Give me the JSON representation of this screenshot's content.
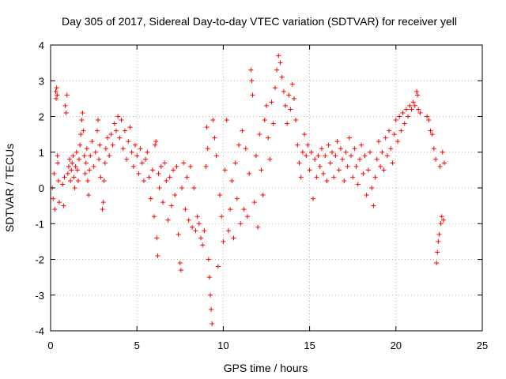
{
  "chart_data": {
    "type": "scatter",
    "title": "Day 305 of 2017, Sidereal Day-to-day VTEC variation (SDTVAR) for receiver yell",
    "xlabel": "GPS time / hours",
    "ylabel": "SDTVAR / TECUs",
    "xlim": [
      0,
      25
    ],
    "ylim": [
      -4,
      4
    ],
    "xticks": [
      0,
      5,
      10,
      15,
      20,
      25
    ],
    "yticks": [
      -4,
      -3,
      -2,
      -1,
      0,
      1,
      2,
      3,
      4
    ],
    "xtick_labels": [
      "0",
      "5",
      "10",
      "15",
      "20",
      "25"
    ],
    "ytick_labels": [
      "-4",
      "-3",
      "-2",
      "-1",
      "0",
      "1",
      "2",
      "3",
      "4"
    ],
    "grid": true,
    "marker": "+",
    "marker_color": "#ff0000",
    "series": [
      {
        "name": "SDTVAR",
        "points": [
          [
            0.1,
            0.0
          ],
          [
            0.15,
            -0.3
          ],
          [
            0.2,
            0.4
          ],
          [
            0.25,
            -0.6
          ],
          [
            0.3,
            2.7
          ],
          [
            0.32,
            2.5
          ],
          [
            0.35,
            2.8
          ],
          [
            0.38,
            2.6
          ],
          [
            0.4,
            0.9
          ],
          [
            0.42,
            0.7
          ],
          [
            0.45,
            0.2
          ],
          [
            0.5,
            -0.4
          ],
          [
            0.7,
            0.1
          ],
          [
            0.75,
            -0.5
          ],
          [
            0.8,
            0.3
          ],
          [
            0.85,
            2.3
          ],
          [
            0.9,
            2.1
          ],
          [
            0.95,
            2.6
          ],
          [
            1.0,
            0.4
          ],
          [
            1.05,
            0.6
          ],
          [
            1.1,
            0.8
          ],
          [
            1.15,
            0.2
          ],
          [
            1.2,
            0.5
          ],
          [
            1.25,
            0.7
          ],
          [
            1.3,
            0.9
          ],
          [
            1.35,
            0.3
          ],
          [
            1.4,
            0.0
          ],
          [
            1.45,
            0.6
          ],
          [
            1.5,
            1.0
          ],
          [
            1.55,
            0.5
          ],
          [
            1.6,
            0.2
          ],
          [
            1.65,
            0.8
          ],
          [
            1.7,
            1.2
          ],
          [
            1.75,
            1.5
          ],
          [
            1.8,
            1.9
          ],
          [
            1.85,
            2.1
          ],
          [
            1.9,
            1.6
          ],
          [
            1.95,
            0.9
          ],
          [
            2.0,
            0.4
          ],
          [
            2.05,
            0.7
          ],
          [
            2.1,
            1.1
          ],
          [
            2.15,
            0.2
          ],
          [
            2.2,
            -0.2
          ],
          [
            2.25,
            0.5
          ],
          [
            2.3,
            0.9
          ],
          [
            2.4,
            1.3
          ],
          [
            2.5,
            0.6
          ],
          [
            2.6,
            1.0
          ],
          [
            2.7,
            1.6
          ],
          [
            2.75,
            1.9
          ],
          [
            2.8,
            0.8
          ],
          [
            2.85,
            1.2
          ],
          [
            2.9,
            0.3
          ],
          [
            3.0,
            -0.6
          ],
          [
            3.05,
            -0.4
          ],
          [
            3.1,
            0.2
          ],
          [
            3.15,
            0.7
          ],
          [
            3.2,
            1.1
          ],
          [
            3.3,
            1.4
          ],
          [
            3.4,
            0.9
          ],
          [
            3.5,
            1.5
          ],
          [
            3.6,
            1.2
          ],
          [
            3.7,
            1.8
          ],
          [
            3.8,
            1.6
          ],
          [
            3.9,
            2.0
          ],
          [
            4.0,
            1.4
          ],
          [
            4.1,
            1.9
          ],
          [
            4.2,
            1.1
          ],
          [
            4.3,
            1.6
          ],
          [
            4.4,
            0.8
          ],
          [
            4.5,
            1.3
          ],
          [
            4.6,
            1.7
          ],
          [
            4.7,
            1.0
          ],
          [
            4.8,
            0.6
          ],
          [
            4.9,
            1.2
          ],
          [
            5.0,
            0.9
          ],
          [
            5.1,
            0.4
          ],
          [
            5.2,
            1.1
          ],
          [
            5.3,
            0.7
          ],
          [
            5.4,
            0.2
          ],
          [
            5.5,
            0.8
          ],
          [
            5.6,
            1.0
          ],
          [
            5.7,
            0.3
          ],
          [
            5.8,
            -0.3
          ],
          [
            5.9,
            0.5
          ],
          [
            6.0,
            -0.8
          ],
          [
            6.05,
            1.2
          ],
          [
            6.1,
            1.3
          ],
          [
            6.15,
            -1.4
          ],
          [
            6.2,
            -1.9
          ],
          [
            6.25,
            0.4
          ],
          [
            6.3,
            0.0
          ],
          [
            6.4,
            0.6
          ],
          [
            6.5,
            -0.4
          ],
          [
            6.6,
            0.7
          ],
          [
            6.7,
            0.2
          ],
          [
            6.8,
            -0.9
          ],
          [
            6.9,
            0.3
          ],
          [
            7.0,
            -0.5
          ],
          [
            7.1,
            0.5
          ],
          [
            7.2,
            -0.2
          ],
          [
            7.3,
            0.6
          ],
          [
            7.4,
            -1.3
          ],
          [
            7.5,
            -2.1
          ],
          [
            7.55,
            -2.3
          ],
          [
            7.6,
            0.0
          ],
          [
            7.7,
            0.7
          ],
          [
            7.8,
            -0.6
          ],
          [
            7.9,
            0.3
          ],
          [
            8.0,
            -0.9
          ],
          [
            8.1,
            0.6
          ],
          [
            8.2,
            -1.1
          ],
          [
            8.3,
            0.0
          ],
          [
            8.4,
            -1.2
          ],
          [
            8.5,
            -0.8
          ],
          [
            8.6,
            -1.0
          ],
          [
            8.7,
            -1.4
          ],
          [
            8.8,
            -1.6
          ],
          [
            8.9,
            -1.2
          ],
          [
            9.0,
            0.6
          ],
          [
            9.05,
            1.7
          ],
          [
            9.1,
            1.1
          ],
          [
            9.15,
            -2.0
          ],
          [
            9.2,
            -2.5
          ],
          [
            9.25,
            -3.0
          ],
          [
            9.3,
            -3.4
          ],
          [
            9.35,
            -3.8
          ],
          [
            9.4,
            1.9
          ],
          [
            9.5,
            1.4
          ],
          [
            9.6,
            0.9
          ],
          [
            9.7,
            -2.2
          ],
          [
            9.8,
            -0.2
          ],
          [
            9.9,
            -0.8
          ],
          [
            10.0,
            -1.5
          ],
          [
            10.1,
            0.5
          ],
          [
            10.2,
            1.9
          ],
          [
            10.3,
            -1.2
          ],
          [
            10.4,
            -0.6
          ],
          [
            10.5,
            0.2
          ],
          [
            10.6,
            -1.4
          ],
          [
            10.7,
            0.7
          ],
          [
            10.8,
            -0.3
          ],
          [
            10.9,
            1.2
          ],
          [
            11.0,
            -1.0
          ],
          [
            11.1,
            1.6
          ],
          [
            11.2,
            -0.6
          ],
          [
            11.3,
            1.1
          ],
          [
            11.4,
            -0.8
          ],
          [
            11.5,
            0.4
          ],
          [
            11.6,
            3.3
          ],
          [
            11.65,
            3.0
          ],
          [
            11.7,
            2.6
          ],
          [
            11.8,
            -0.4
          ],
          [
            11.9,
            0.9
          ],
          [
            12.0,
            -1.1
          ],
          [
            12.1,
            1.5
          ],
          [
            12.2,
            0.5
          ],
          [
            12.3,
            -0.2
          ],
          [
            12.4,
            1.9
          ],
          [
            12.5,
            2.3
          ],
          [
            12.6,
            1.4
          ],
          [
            12.7,
            0.8
          ],
          [
            12.8,
            2.4
          ],
          [
            12.9,
            1.8
          ],
          [
            13.0,
            2.8
          ],
          [
            13.1,
            3.3
          ],
          [
            13.2,
            3.7
          ],
          [
            13.3,
            3.5
          ],
          [
            13.4,
            3.1
          ],
          [
            13.5,
            2.7
          ],
          [
            13.6,
            2.3
          ],
          [
            13.7,
            1.8
          ],
          [
            13.8,
            2.6
          ],
          [
            13.9,
            2.2
          ],
          [
            14.0,
            2.9
          ],
          [
            14.1,
            2.5
          ],
          [
            14.2,
            1.9
          ],
          [
            14.3,
            1.2
          ],
          [
            14.4,
            0.7
          ],
          [
            14.5,
            0.3
          ],
          [
            14.6,
            1.0
          ],
          [
            14.7,
            1.5
          ],
          [
            14.8,
            0.9
          ],
          [
            14.9,
            1.2
          ],
          [
            15.0,
            0.5
          ],
          [
            15.1,
            1.0
          ],
          [
            15.2,
            -0.3
          ],
          [
            15.3,
            0.8
          ],
          [
            15.4,
            0.3
          ],
          [
            15.5,
            0.9
          ],
          [
            15.6,
            0.6
          ],
          [
            15.7,
            1.1
          ],
          [
            15.8,
            0.4
          ],
          [
            15.9,
            0.9
          ],
          [
            16.0,
            0.2
          ],
          [
            16.1,
            1.2
          ],
          [
            16.2,
            0.7
          ],
          [
            16.3,
            1.0
          ],
          [
            16.4,
            0.3
          ],
          [
            16.5,
            0.9
          ],
          [
            16.6,
            1.3
          ],
          [
            16.7,
            0.5
          ],
          [
            16.8,
            1.1
          ],
          [
            16.9,
            0.8
          ],
          [
            17.0,
            0.2
          ],
          [
            17.1,
            1.0
          ],
          [
            17.2,
            0.6
          ],
          [
            17.3,
            1.4
          ],
          [
            17.4,
            0.9
          ],
          [
            17.5,
            0.3
          ],
          [
            17.6,
            1.1
          ],
          [
            17.7,
            0.6
          ],
          [
            17.8,
            0.1
          ],
          [
            17.9,
            0.8
          ],
          [
            18.0,
            1.2
          ],
          [
            18.1,
            0.4
          ],
          [
            18.2,
            0.9
          ],
          [
            18.3,
            -0.2
          ],
          [
            18.4,
            0.5
          ],
          [
            18.5,
            1.0
          ],
          [
            18.6,
            0.0
          ],
          [
            18.7,
            -0.5
          ],
          [
            18.8,
            0.3
          ],
          [
            18.9,
            0.8
          ],
          [
            19.0,
            1.3
          ],
          [
            19.1,
            0.6
          ],
          [
            19.2,
            1.0
          ],
          [
            19.3,
            0.5
          ],
          [
            19.4,
            1.4
          ],
          [
            19.5,
            0.9
          ],
          [
            19.6,
            1.6
          ],
          [
            19.7,
            1.1
          ],
          [
            19.8,
            0.7
          ],
          [
            19.9,
            1.5
          ],
          [
            20.0,
            1.9
          ],
          [
            20.1,
            1.3
          ],
          [
            20.2,
            2.0
          ],
          [
            20.3,
            1.6
          ],
          [
            20.4,
            2.1
          ],
          [
            20.5,
            1.8
          ],
          [
            20.6,
            2.2
          ],
          [
            20.7,
            2.0
          ],
          [
            20.8,
            2.3
          ],
          [
            20.9,
            2.2
          ],
          [
            21.0,
            2.4
          ],
          [
            21.1,
            2.3
          ],
          [
            21.2,
            2.7
          ],
          [
            21.25,
            2.6
          ],
          [
            21.3,
            2.2
          ],
          [
            21.4,
            2.1
          ],
          [
            21.8,
            2.0
          ],
          [
            21.9,
            1.9
          ],
          [
            22.0,
            1.6
          ],
          [
            22.1,
            1.5
          ],
          [
            22.2,
            1.1
          ],
          [
            22.3,
            0.8
          ],
          [
            22.35,
            -2.1
          ],
          [
            22.4,
            -1.8
          ],
          [
            22.45,
            -1.5
          ],
          [
            22.5,
            -1.3
          ],
          [
            22.55,
            0.6
          ],
          [
            22.6,
            -1.0
          ],
          [
            22.65,
            -0.8
          ],
          [
            22.7,
            1.0
          ],
          [
            22.75,
            -0.9
          ],
          [
            22.8,
            0.7
          ]
        ]
      }
    ]
  }
}
